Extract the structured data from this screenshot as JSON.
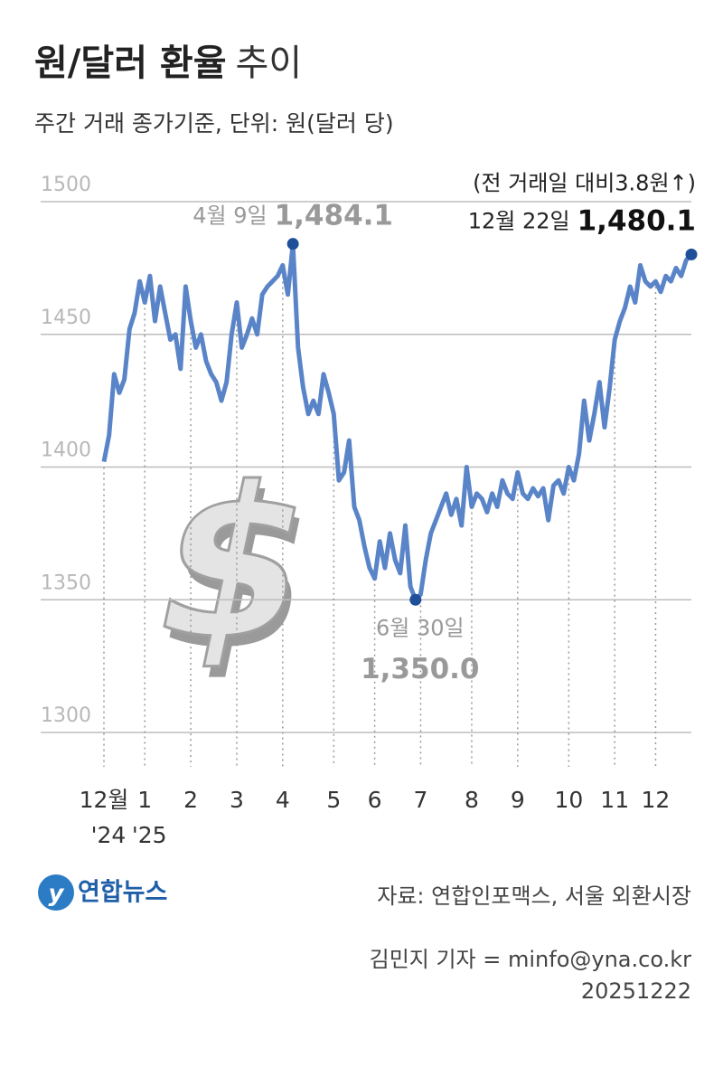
{
  "title_main": "원/달러 환율",
  "title_sub": "추이",
  "subtitle": "주간 거래 종가기준, 단위: 원(달러 당)",
  "chart_data": {
    "type": "line",
    "categories": [
      "12월",
      null,
      null,
      null,
      null,
      null,
      null,
      null,
      "1",
      null,
      null,
      null,
      null,
      null,
      null,
      null,
      null,
      "2",
      null,
      null,
      null,
      null,
      null,
      null,
      null,
      null,
      "3",
      null,
      null,
      null,
      null,
      null,
      null,
      null,
      null,
      "4",
      null,
      null,
      null,
      null,
      null,
      null,
      null,
      null,
      null,
      "5",
      null,
      null,
      null,
      null,
      null,
      null,
      null,
      "6",
      null,
      null,
      null,
      null,
      null,
      null,
      null,
      null,
      "7",
      null,
      null,
      null,
      null,
      null,
      null,
      null,
      null,
      null,
      "8",
      null,
      null,
      null,
      null,
      null,
      null,
      null,
      null,
      "9",
      null,
      null,
      null,
      null,
      null,
      null,
      null,
      null,
      null,
      "10",
      null,
      null,
      null,
      null,
      null,
      null,
      null,
      null,
      "11",
      null,
      null,
      null,
      null,
      null,
      null,
      null,
      "12",
      null,
      null,
      null,
      null,
      null,
      null,
      null
    ],
    "year_labels": [
      "'24",
      "'25"
    ],
    "series": [
      {
        "name": "원/달러 환율",
        "color": "#5a84c8",
        "marker_color": "#1f4f98",
        "values": [
          1402,
          1412,
          1435,
          1428,
          1433,
          1452,
          1458,
          1470,
          1462,
          1472,
          1455,
          1468,
          1458,
          1448,
          1450,
          1437,
          1468,
          1455,
          1445,
          1450,
          1440,
          1435,
          1432,
          1425,
          1432,
          1450,
          1462,
          1445,
          1450,
          1456,
          1450,
          1465,
          1468,
          1470,
          1472,
          1476,
          1465,
          1484.1,
          1445,
          1430,
          1420,
          1425,
          1420,
          1435,
          1428,
          1420,
          1395,
          1398,
          1410,
          1385,
          1380,
          1370,
          1362,
          1358,
          1372,
          1362,
          1375,
          1365,
          1360,
          1378,
          1355,
          1350,
          1352,
          1365,
          1375,
          1380,
          1385,
          1390,
          1382,
          1388,
          1378,
          1400,
          1385,
          1390,
          1388,
          1383,
          1390,
          1385,
          1395,
          1390,
          1388,
          1398,
          1390,
          1388,
          1392,
          1389,
          1392,
          1380,
          1393,
          1395,
          1390,
          1400,
          1395,
          1405,
          1425,
          1410,
          1420,
          1432,
          1415,
          1430,
          1448,
          1455,
          1460,
          1468,
          1462,
          1476,
          1470,
          1468,
          1470,
          1466,
          1472,
          1470,
          1475,
          1472,
          1478,
          1480.1
        ],
        "value_labels": [
          null,
          null,
          null,
          null,
          null,
          null,
          null,
          null,
          null,
          null,
          null,
          null,
          null,
          null,
          null,
          null,
          null,
          null,
          null,
          null,
          null,
          null,
          null,
          null,
          null,
          null,
          null,
          null,
          null,
          null,
          null,
          null,
          null,
          null,
          null,
          null,
          null,
          "1,484.1",
          null,
          null,
          null,
          null,
          null,
          null,
          null,
          null,
          null,
          null,
          null,
          null,
          null,
          null,
          null,
          null,
          null,
          null,
          null,
          null,
          null,
          null,
          null,
          "1,350.0",
          null,
          null,
          null,
          null,
          null,
          null,
          null,
          null,
          null,
          null,
          null,
          null,
          null,
          null,
          null,
          null,
          null,
          null,
          null,
          null,
          null,
          null,
          null,
          null,
          null,
          null,
          null,
          null,
          null,
          null,
          null,
          null,
          null,
          null,
          null,
          null,
          null,
          null,
          null,
          null,
          null,
          null,
          null,
          null,
          null,
          null,
          null,
          null,
          null,
          null,
          null,
          null,
          null,
          "1,480.1"
        ],
        "point_dates": [
          null,
          null,
          null,
          null,
          null,
          null,
          null,
          null,
          null,
          null,
          null,
          null,
          null,
          null,
          null,
          null,
          null,
          null,
          null,
          null,
          null,
          null,
          null,
          null,
          null,
          null,
          null,
          null,
          null,
          null,
          null,
          null,
          null,
          null,
          null,
          null,
          null,
          "4월 9일",
          null,
          null,
          null,
          null,
          null,
          null,
          null,
          null,
          null,
          null,
          null,
          null,
          null,
          null,
          null,
          null,
          null,
          null,
          null,
          null,
          null,
          null,
          null,
          "6월 30일",
          null,
          null,
          null,
          null,
          null,
          null,
          null,
          null,
          null,
          null,
          null,
          null,
          null,
          null,
          null,
          null,
          null,
          null,
          null,
          null,
          null,
          null,
          null,
          null,
          null,
          null,
          null,
          null,
          null,
          null,
          null,
          null,
          null,
          null,
          null,
          null,
          null,
          null,
          null,
          null,
          null,
          null,
          null,
          null,
          null,
          null,
          null,
          null,
          null,
          null,
          null,
          null,
          null,
          "12월 22일"
        ]
      }
    ],
    "change_note": "(전 거래일 대비3.8원↑)",
    "ylim": [
      1300,
      1500
    ],
    "yticks": [
      1300,
      1350,
      1400,
      1450,
      1500
    ],
    "grid": true
  },
  "footer": {
    "logo": "연합뉴스",
    "source": "자료: 연합인포맥스, 서울 외환시장",
    "byline": "김민지 기자 = minfo@yna.co.kr",
    "date": "20251222"
  }
}
